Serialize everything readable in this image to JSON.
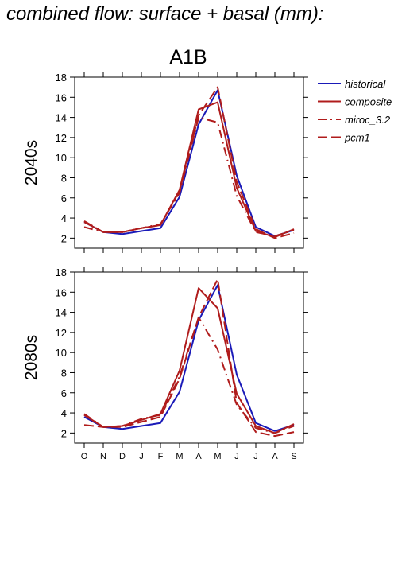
{
  "figure": {
    "title": "combined flow: surface + basal (mm):",
    "scenario": "A1B"
  },
  "colors": {
    "historical": "#1a1ab8",
    "composite": "#b01c1c",
    "miroc_3.2": "#b01c1c",
    "pcm1": "#b01c1c"
  },
  "chart_data": [
    {
      "type": "line",
      "panel_label": "2040s",
      "categories": [
        "O",
        "N",
        "D",
        "J",
        "F",
        "M",
        "A",
        "M",
        "J",
        "J",
        "A",
        "S"
      ],
      "ylim": [
        1,
        18
      ],
      "yticks": [
        2,
        4,
        6,
        8,
        10,
        12,
        14,
        16,
        18
      ],
      "series": [
        {
          "name": "historical",
          "style": "solid",
          "color": "#1a1ab8",
          "values": [
            3.6,
            2.6,
            2.4,
            2.7,
            3.0,
            6.1,
            13.3,
            16.7,
            8.2,
            3.1,
            2.2,
            2.8
          ]
        },
        {
          "name": "composite",
          "style": "solid",
          "color": "#b01c1c",
          "values": [
            3.6,
            2.6,
            2.6,
            3.0,
            3.3,
            6.8,
            14.8,
            15.5,
            7.0,
            2.7,
            2.1,
            2.9
          ]
        },
        {
          "name": "miroc_3.2",
          "style": "dashdot",
          "color": "#b01c1c",
          "values": [
            3.1,
            2.6,
            2.6,
            3.0,
            3.4,
            6.5,
            14.0,
            13.5,
            6.2,
            2.6,
            2.2,
            2.8
          ]
        },
        {
          "name": "pcm1",
          "style": "dashed",
          "color": "#b01c1c",
          "values": [
            3.7,
            2.6,
            2.6,
            3.0,
            3.3,
            6.7,
            14.2,
            17.0,
            7.6,
            2.9,
            2.0,
            2.5
          ]
        }
      ]
    },
    {
      "type": "line",
      "panel_label": "2080s",
      "categories": [
        "O",
        "N",
        "D",
        "J",
        "F",
        "M",
        "A",
        "M",
        "J",
        "J",
        "A",
        "S"
      ],
      "ylim": [
        1,
        18
      ],
      "yticks": [
        2,
        4,
        6,
        8,
        10,
        12,
        14,
        16,
        18
      ],
      "series": [
        {
          "name": "historical",
          "style": "solid",
          "color": "#1a1ab8",
          "values": [
            3.6,
            2.6,
            2.4,
            2.7,
            3.0,
            6.1,
            13.2,
            16.7,
            7.8,
            3.0,
            2.2,
            2.8
          ]
        },
        {
          "name": "composite",
          "style": "solid",
          "color": "#b01c1c",
          "values": [
            3.8,
            2.6,
            2.7,
            3.3,
            3.9,
            8.2,
            16.4,
            14.4,
            5.9,
            2.7,
            2.0,
            2.9
          ]
        },
        {
          "name": "miroc_3.2",
          "style": "dashdot",
          "color": "#b01c1c",
          "values": [
            3.9,
            2.6,
            2.7,
            3.4,
            3.8,
            7.6,
            13.5,
            10.3,
            4.8,
            2.5,
            2.0,
            2.7
          ]
        },
        {
          "name": "pcm1",
          "style": "dashed",
          "color": "#b01c1c",
          "values": [
            2.8,
            2.6,
            2.6,
            3.1,
            3.6,
            7.4,
            13.5,
            17.3,
            5.0,
            2.1,
            1.7,
            2.1
          ]
        }
      ]
    }
  ],
  "legend": {
    "items": [
      {
        "label": "historical",
        "style": "solid",
        "color": "#1a1ab8"
      },
      {
        "label": "composite",
        "style": "solid",
        "color": "#b01c1c"
      },
      {
        "label": "miroc_3.2",
        "style": "dashdot",
        "color": "#b01c1c"
      },
      {
        "label": "pcm1",
        "style": "dashed",
        "color": "#b01c1c"
      }
    ]
  }
}
